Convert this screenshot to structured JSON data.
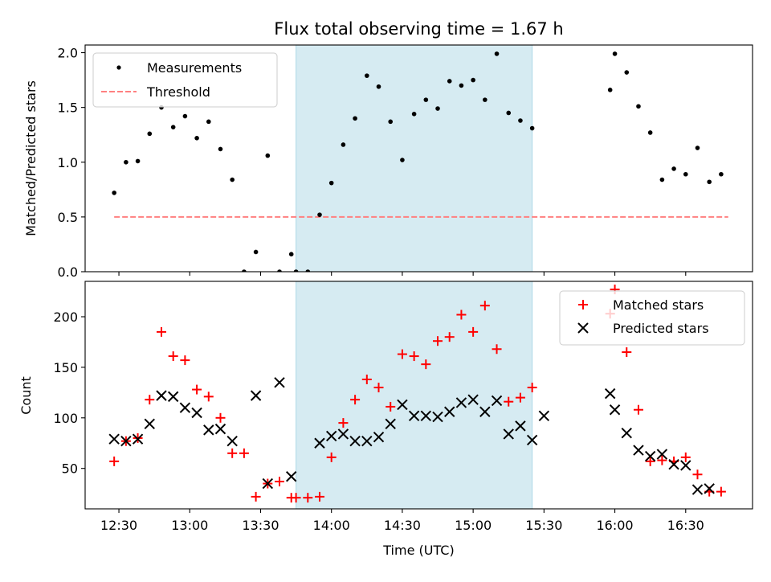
{
  "chart_data": [
    {
      "type": "scatter",
      "title": "Flux total observing time = 1.67 h",
      "xlabel": "",
      "ylabel": "Matched/Predicted stars",
      "ylim": [
        0,
        2.07
      ],
      "yticks": [
        0.0,
        0.5,
        1.0,
        1.5,
        2.0
      ],
      "ytick_labels": [
        "0.0",
        "0.5",
        "1.0",
        "1.5",
        "2.0"
      ],
      "x_units": "minutes since 00:00 UTC",
      "xlim": [
        735.7,
        1018.3
      ],
      "shaded_interval": [
        825,
        925
      ],
      "shade_color": "#add8e6",
      "legend": [
        {
          "name": "Measurements",
          "marker": "dot",
          "color": "#000000"
        },
        {
          "name": "Threshold",
          "marker": "dashed-line",
          "color": "#ff8080"
        }
      ],
      "legend_position": "upper-left",
      "threshold": {
        "name": "Threshold",
        "value": 0.5,
        "x_range": [
          748,
          1008
        ],
        "color": "#ff8080"
      },
      "series": [
        {
          "name": "Measurements",
          "color": "#000000",
          "x": [
            748,
            753,
            758,
            763,
            768,
            773,
            778,
            783,
            788,
            793,
            798,
            803,
            808,
            813,
            818,
            823,
            825,
            830,
            835,
            840,
            845,
            850,
            855,
            860,
            865,
            870,
            875,
            880,
            885,
            890,
            895,
            900,
            905,
            910,
            915,
            920,
            925,
            958,
            960,
            965,
            970,
            975,
            980,
            985,
            990,
            995,
            1000,
            1005
          ],
          "y": [
            0.72,
            1.0,
            1.01,
            1.26,
            1.5,
            1.32,
            1.42,
            1.22,
            1.37,
            1.12,
            0.84,
            0.0,
            0.18,
            1.06,
            0.0,
            0.16,
            0.0,
            0.0,
            0.52,
            0.81,
            1.16,
            1.4,
            1.79,
            1.69,
            1.37,
            1.02,
            1.44,
            1.57,
            1.49,
            1.74,
            1.7,
            1.75,
            1.57,
            1.99,
            1.45,
            1.38,
            1.31,
            1.66,
            1.99,
            1.82,
            1.51,
            1.27,
            0.84,
            0.94,
            0.89,
            1.13,
            0.82,
            0.89
          ]
        }
      ]
    },
    {
      "type": "scatter",
      "title": "",
      "xlabel": "Time (UTC)",
      "ylabel": "Count",
      "ylim": [
        10,
        235
      ],
      "yticks": [
        50,
        100,
        150,
        200
      ],
      "ytick_labels": [
        "50",
        "100",
        "150",
        "200"
      ],
      "xticks": [
        750,
        780,
        810,
        840,
        870,
        900,
        930,
        960,
        990
      ],
      "xtick_labels": [
        "12:30",
        "13:00",
        "13:30",
        "14:00",
        "14:30",
        "15:00",
        "15:30",
        "16:00",
        "16:30"
      ],
      "x_units": "minutes since 00:00 UTC",
      "xlim": [
        735.7,
        1018.3
      ],
      "shaded_interval": [
        825,
        925
      ],
      "shade_color": "#add8e6",
      "legend": [
        {
          "name": "Matched stars",
          "marker": "plus",
          "color": "#ff0000"
        },
        {
          "name": "Predicted stars",
          "marker": "x",
          "color": "#000000"
        }
      ],
      "legend_position": "upper-right",
      "series": [
        {
          "name": "Matched stars",
          "marker": "plus",
          "color": "#ff0000",
          "x": [
            748,
            753,
            758,
            763,
            768,
            773,
            778,
            783,
            788,
            793,
            798,
            803,
            808,
            813,
            818,
            823,
            825,
            830,
            835,
            840,
            845,
            850,
            855,
            860,
            865,
            870,
            875,
            880,
            885,
            890,
            895,
            900,
            905,
            910,
            915,
            920,
            925,
            958,
            960,
            965,
            970,
            975,
            980,
            985,
            990,
            995,
            1000,
            1005
          ],
          "y": [
            57,
            77,
            80,
            118,
            185,
            161,
            157,
            128,
            121,
            100,
            65,
            65,
            22,
            35,
            37,
            21,
            21,
            21,
            22,
            61,
            95,
            118,
            138,
            130,
            111,
            163,
            161,
            153,
            176,
            180,
            202,
            185,
            211,
            168,
            116,
            120,
            130,
            203,
            227,
            165,
            108,
            57,
            58,
            57,
            61,
            44,
            27,
            27
          ]
        },
        {
          "name": "Predicted stars",
          "marker": "x",
          "color": "#000000",
          "x": [
            748,
            753,
            758,
            763,
            768,
            773,
            778,
            783,
            788,
            793,
            798,
            808,
            813,
            818,
            823,
            835,
            840,
            845,
            850,
            855,
            860,
            865,
            870,
            875,
            880,
            885,
            890,
            895,
            900,
            905,
            910,
            915,
            920,
            925,
            930,
            958,
            960,
            965,
            970,
            975,
            980,
            985,
            990,
            995,
            1000
          ],
          "y": [
            79,
            77,
            79,
            94,
            122,
            121,
            110,
            105,
            88,
            89,
            77,
            122,
            35,
            135,
            42,
            75,
            82,
            84,
            77,
            77,
            81,
            94,
            113,
            102,
            102,
            101,
            106,
            115,
            118,
            106,
            117,
            84,
            92,
            78,
            102,
            124,
            108,
            85,
            68,
            62,
            64,
            54,
            53,
            29,
            30
          ]
        }
      ]
    }
  ]
}
